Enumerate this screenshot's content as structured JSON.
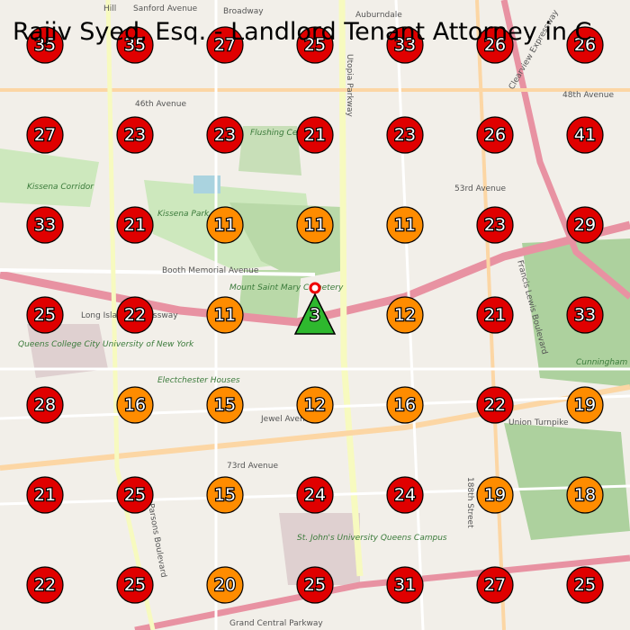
{
  "title": "Rajiv Syed, Esq. - Landlord Tenant Attorney in C",
  "grid": [
    [
      35,
      35,
      27,
      25,
      33,
      26,
      26
    ],
    [
      27,
      23,
      23,
      21,
      23,
      26,
      41
    ],
    [
      33,
      21,
      11,
      11,
      11,
      23,
      29
    ],
    [
      25,
      22,
      11,
      null,
      12,
      21,
      33
    ],
    [
      28,
      16,
      15,
      12,
      16,
      22,
      19
    ],
    [
      21,
      25,
      15,
      24,
      24,
      19,
      18
    ],
    [
      22,
      25,
      20,
      25,
      31,
      27,
      25
    ]
  ],
  "grid_colors": [
    [
      "#e00000",
      "#e00000",
      "#e00000",
      "#e00000",
      "#e00000",
      "#e00000",
      "#e00000"
    ],
    [
      "#e00000",
      "#e00000",
      "#e00000",
      "#e00000",
      "#e00000",
      "#e00000",
      "#e00000"
    ],
    [
      "#e00000",
      "#e00000",
      "#ff8c00",
      "#ff8c00",
      "#ff8c00",
      "#e00000",
      "#e00000"
    ],
    [
      "#e00000",
      "#e00000",
      "#ff8c00",
      null,
      "#ff8c00",
      "#e00000",
      "#e00000"
    ],
    [
      "#e00000",
      "#ff8c00",
      "#ff8c00",
      "#ff8c00",
      "#ff8c00",
      "#e00000",
      "#ff8c00"
    ],
    [
      "#e00000",
      "#e00000",
      "#ff8c00",
      "#e00000",
      "#e00000",
      "#ff8c00",
      "#ff8c00"
    ],
    [
      "#e00000",
      "#e00000",
      "#ff8c00",
      "#e00000",
      "#e00000",
      "#e00000",
      "#e00000"
    ]
  ],
  "business_marker": {
    "rank": 3,
    "color": "#2eb82e"
  },
  "map_labels": [
    "Broadway",
    "Auburndale",
    "Sanford Avenue",
    "Hill",
    "46th Avenue",
    "48th Avenue",
    "Flushing Cemetery",
    "Kissena Corridor",
    "Kissena Park",
    "Booth Memorial Avenue",
    "Long Island Expressway",
    "Mount Saint Mary Cemetery",
    "Queens College City University of New York",
    "Electchester Houses",
    "73rd Avenue",
    "Jewel Avenue",
    "Union Turnpike",
    "Cunningham Park",
    "Utopia Parkway",
    "Francis Lewis Boulevard",
    "Clearview Expressway",
    "53rd Avenue",
    "St. John's University Queens Campus",
    "Grand Central Parkway",
    "Parsons Boulevard",
    "188th Street"
  ]
}
